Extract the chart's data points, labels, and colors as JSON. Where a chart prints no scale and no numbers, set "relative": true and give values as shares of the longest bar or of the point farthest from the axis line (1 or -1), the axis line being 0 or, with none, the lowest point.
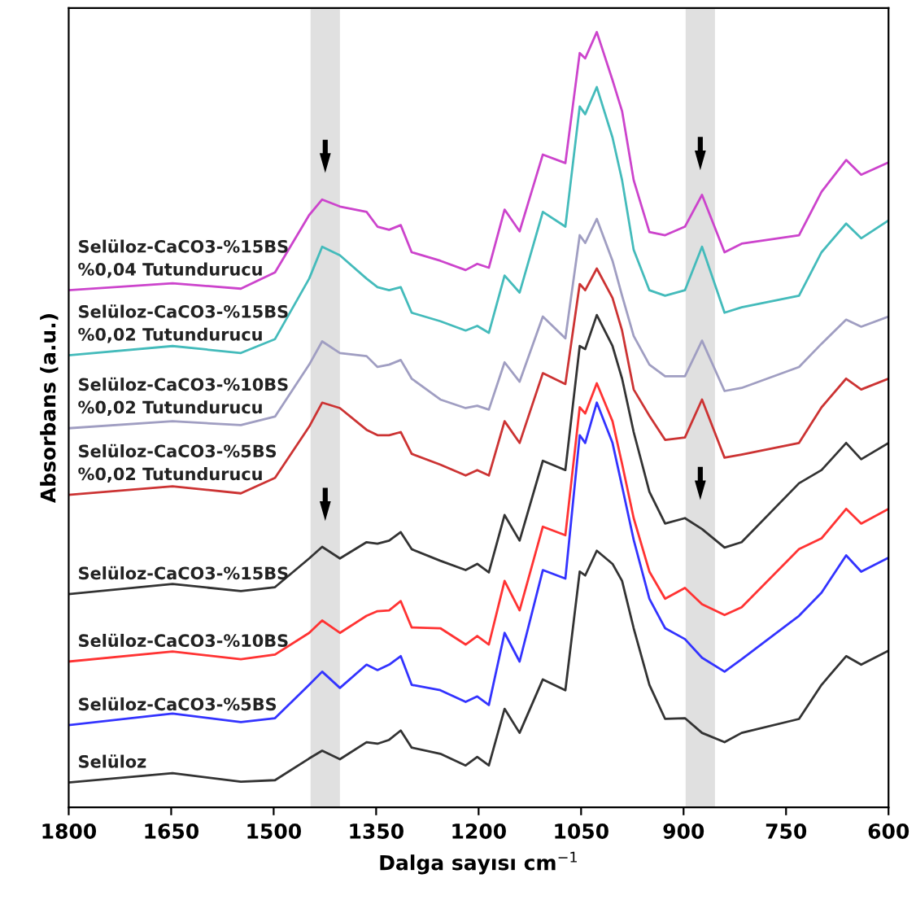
{
  "chart_data": {
    "type": "line",
    "relative": true,
    "xlabel": "Dalga sayısı cm$^{−1}$",
    "ylabel": "Absorbans (a.u.)",
    "xlim": [
      1800,
      600
    ],
    "xticks": [
      1800,
      1650,
      1500,
      1350,
      1200,
      1050,
      900,
      750,
      600
    ],
    "tick_labels": "x",
    "grid": false,
    "legend": false,
    "marker": "none",
    "line_style": "solid",
    "x": [
      1800,
      1648,
      1548,
      1498,
      1448,
      1429,
      1403,
      1364,
      1348,
      1331,
      1314,
      1298,
      1256,
      1219,
      1202,
      1185,
      1162,
      1140,
      1106,
      1073,
      1052,
      1044,
      1027,
      1004,
      990,
      973,
      950,
      927,
      898,
      873,
      840,
      815,
      731,
      698,
      662,
      640,
      600
    ],
    "bands": [
      {
        "axis": "x",
        "from": 1446,
        "to": 1403,
        "color": "#e0e0e0"
      },
      {
        "axis": "x",
        "from": 897,
        "to": 854,
        "color": "#e0e0e0"
      }
    ],
    "series": [
      {
        "name": "Selüloz-CaCO3-%15BS\n%0,04 Tutundurucu",
        "color": "#cc44cc",
        "values": [
          0.667,
          0.676,
          0.669,
          0.69,
          0.764,
          0.784,
          0.775,
          0.768,
          0.749,
          0.745,
          0.751,
          0.716,
          0.705,
          0.693,
          0.701,
          0.696,
          0.771,
          0.743,
          0.842,
          0.831,
          0.973,
          0.966,
          1,
          0.938,
          0.898,
          0.809,
          0.742,
          0.738,
          0.749,
          0.79,
          0.716,
          0.727,
          0.738,
          0.794,
          0.835,
          0.816,
          0.832
        ]
      },
      {
        "name": "Selüloz-CaCO3-%15BS\n%0,02 Tutundurucu",
        "color": "#44bbbb",
        "values": [
          0.583,
          0.595,
          0.586,
          0.604,
          0.682,
          0.723,
          0.712,
          0.682,
          0.671,
          0.667,
          0.671,
          0.638,
          0.627,
          0.615,
          0.621,
          0.612,
          0.686,
          0.664,
          0.768,
          0.749,
          0.904,
          0.894,
          0.929,
          0.864,
          0.809,
          0.719,
          0.667,
          0.66,
          0.667,
          0.723,
          0.638,
          0.645,
          0.66,
          0.716,
          0.753,
          0.734,
          0.757
        ]
      },
      {
        "name": "Selüloz-CaCO3-%10BS\n%0,02 Tutundurucu",
        "color": "#a09ec2",
        "values": [
          0.489,
          0.498,
          0.493,
          0.504,
          0.571,
          0.601,
          0.586,
          0.582,
          0.568,
          0.571,
          0.577,
          0.553,
          0.526,
          0.515,
          0.518,
          0.513,
          0.574,
          0.549,
          0.633,
          0.605,
          0.738,
          0.728,
          0.759,
          0.705,
          0.66,
          0.608,
          0.571,
          0.556,
          0.556,
          0.602,
          0.537,
          0.541,
          0.568,
          0.598,
          0.629,
          0.62,
          0.633
        ]
      },
      {
        "name": "Selüloz-CaCO3-%5BS\n%0,02 Tutundurucu",
        "color": "#cc3333",
        "values": [
          0.403,
          0.414,
          0.405,
          0.425,
          0.491,
          0.522,
          0.515,
          0.487,
          0.48,
          0.48,
          0.484,
          0.456,
          0.442,
          0.428,
          0.435,
          0.428,
          0.498,
          0.47,
          0.56,
          0.546,
          0.675,
          0.667,
          0.695,
          0.657,
          0.615,
          0.539,
          0.505,
          0.474,
          0.477,
          0.526,
          0.451,
          0.455,
          0.47,
          0.516,
          0.553,
          0.539,
          0.553
        ]
      },
      {
        "name": "Selüloz-CaCO3-%15BS",
        "color": "#333333",
        "values": [
          0.275,
          0.288,
          0.279,
          0.284,
          0.321,
          0.336,
          0.321,
          0.342,
          0.34,
          0.344,
          0.355,
          0.333,
          0.318,
          0.306,
          0.314,
          0.303,
          0.377,
          0.344,
          0.447,
          0.435,
          0.595,
          0.591,
          0.635,
          0.595,
          0.553,
          0.484,
          0.407,
          0.366,
          0.373,
          0.359,
          0.335,
          0.342,
          0.418,
          0.435,
          0.47,
          0.449,
          0.47
        ]
      },
      {
        "name": "Selüloz-CaCO3-%10BS",
        "color": "#ff3333",
        "values": [
          0.188,
          0.201,
          0.191,
          0.197,
          0.225,
          0.241,
          0.225,
          0.247,
          0.253,
          0.254,
          0.266,
          0.232,
          0.231,
          0.21,
          0.221,
          0.21,
          0.292,
          0.254,
          0.362,
          0.351,
          0.516,
          0.508,
          0.547,
          0.498,
          0.443,
          0.373,
          0.304,
          0.269,
          0.283,
          0.262,
          0.248,
          0.258,
          0.333,
          0.347,
          0.385,
          0.366,
          0.385
        ]
      },
      {
        "name": "Selüloz-CaCO3-%5BS",
        "color": "#3333ff",
        "values": [
          0.106,
          0.121,
          0.11,
          0.115,
          0.158,
          0.175,
          0.154,
          0.184,
          0.177,
          0.184,
          0.195,
          0.158,
          0.151,
          0.136,
          0.143,
          0.132,
          0.225,
          0.188,
          0.306,
          0.295,
          0.48,
          0.47,
          0.522,
          0.47,
          0.414,
          0.345,
          0.269,
          0.231,
          0.217,
          0.193,
          0.175,
          0.191,
          0.247,
          0.277,
          0.325,
          0.304,
          0.322
        ]
      },
      {
        "name": "Selüloz",
        "color": "#333333",
        "values": [
          0.032,
          0.044,
          0.033,
          0.035,
          0.063,
          0.073,
          0.062,
          0.084,
          0.082,
          0.087,
          0.099,
          0.077,
          0.069,
          0.054,
          0.065,
          0.054,
          0.127,
          0.096,
          0.165,
          0.151,
          0.304,
          0.299,
          0.331,
          0.314,
          0.292,
          0.231,
          0.158,
          0.114,
          0.115,
          0.096,
          0.084,
          0.096,
          0.114,
          0.158,
          0.195,
          0.184,
          0.202
        ]
      }
    ]
  }
}
